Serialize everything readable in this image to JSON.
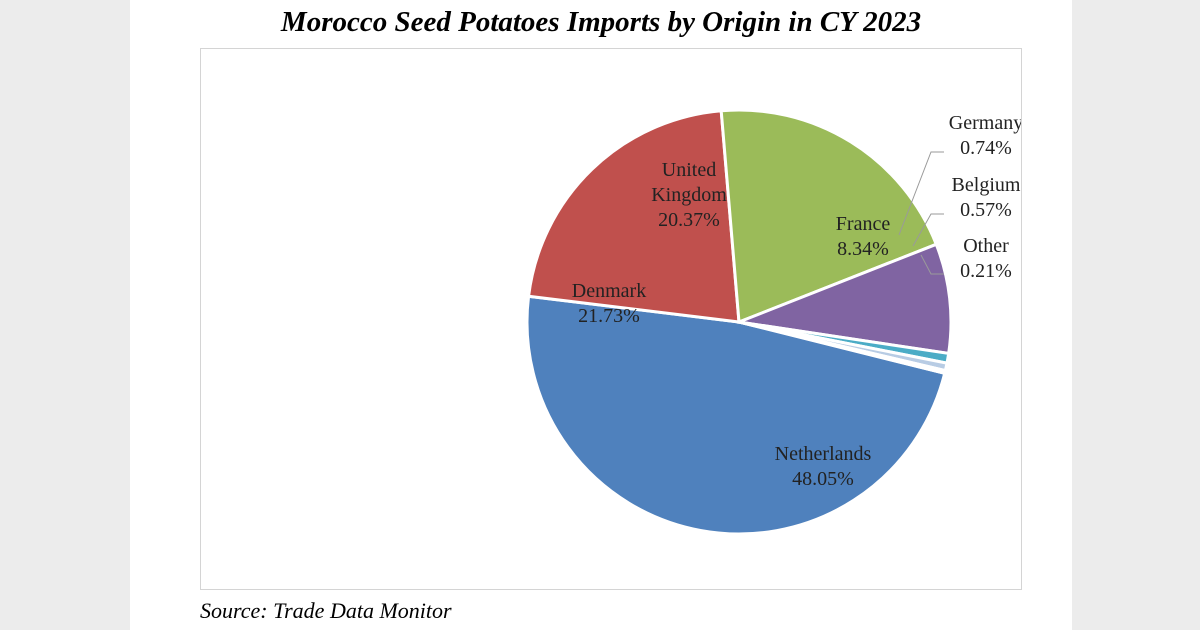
{
  "chart_data": {
    "type": "pie",
    "title": "Morocco Seed Potatoes Imports by Origin in CY 2023",
    "source": "Source: Trade Data Monitor",
    "slices": [
      {
        "name": "Netherlands",
        "value": 48.05,
        "label": "48.05%",
        "color": "#4f81bd"
      },
      {
        "name": "Denmark",
        "value": 21.73,
        "label": "21.73%",
        "color": "#c0504d"
      },
      {
        "name": "United Kingdom",
        "value": 20.37,
        "label": "20.37%",
        "color": "#9bbb59"
      },
      {
        "name": "France",
        "value": 8.34,
        "label": "8.34%",
        "color": "#8064a2"
      },
      {
        "name": "Germany",
        "value": 0.74,
        "label": "0.74%",
        "color": "#4bacc6"
      },
      {
        "name": "Belgium",
        "value": 0.57,
        "label": "0.57%",
        "color": "#b8cce4"
      },
      {
        "name": "Other",
        "value": 0.21,
        "label": "0.21%",
        "color": "#f79646"
      }
    ]
  }
}
